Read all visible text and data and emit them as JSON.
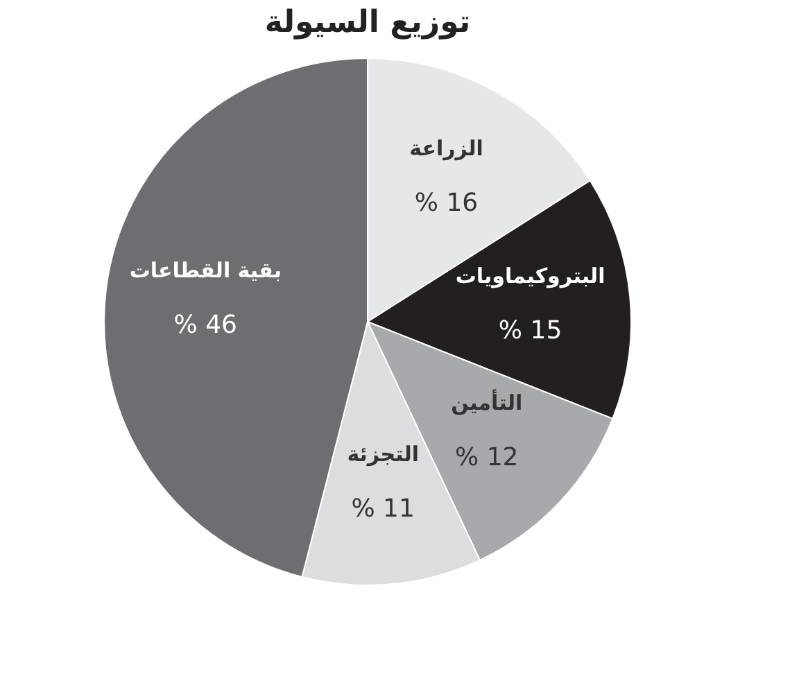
{
  "chart_data": {
    "type": "pie",
    "title": "توزيع السيولة",
    "categories": [
      "الزراعة",
      "البتروكيماويات",
      "التأمين",
      "التجزئة",
      "بقية القطاعات"
    ],
    "values": [
      16,
      15,
      12,
      11,
      46
    ],
    "colors": [
      "#e6e7e8",
      "#231f20",
      "#a7a9ac",
      "#dcdddf",
      "#6d6e71"
    ],
    "value_labels": [
      "% 16",
      "% 15",
      "% 12",
      "% 11",
      "% 46"
    ],
    "legend": false
  }
}
